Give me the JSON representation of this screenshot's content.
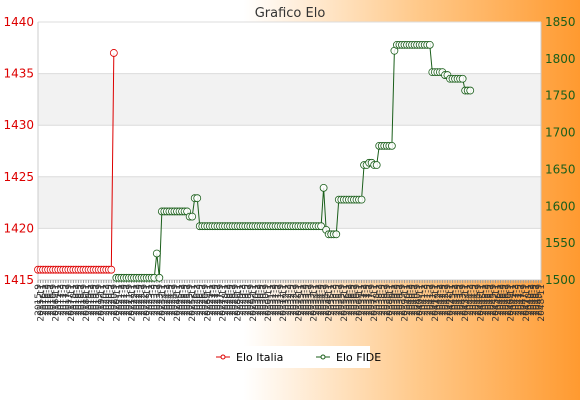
{
  "chart_data": {
    "type": "line",
    "title": "Grafico Elo",
    "xlabel": "",
    "ylabel_left": "",
    "ylabel_right": "",
    "x_tick_labels": [
      "2015-9",
      "2015-11",
      "2016-1",
      "2016-3",
      "2016-5",
      "2016-7",
      "2016-9",
      "2016-11",
      "2017-1",
      "2017-3",
      "2017-5",
      "2017-7",
      "2017-9",
      "2017-11",
      "2018-1",
      "2018-3",
      "2018-5",
      "2018-7",
      "2018-9",
      "2018-11",
      "2019-1",
      "2019-3",
      "2019-5",
      "2019-7",
      "2019-9",
      "2019-11",
      "2020-1",
      "2020-3",
      "2020-5",
      "2020-7",
      "2020-9",
      "2020-11",
      "2021-1",
      "2021-3",
      "2021-5",
      "2021-7",
      "2021-9",
      "2021-11",
      "2022-1",
      "2022-3",
      "2022-5",
      "2022-7",
      "2022-9",
      "2022-11",
      "2023-1",
      "2023-3",
      "2023-5",
      "2023-7",
      "2023-9",
      "2023-11",
      "2024-1",
      "2024-3",
      "2024-5",
      "2024-7",
      "2024-9",
      "2024-11",
      "2025-1",
      "2025-3",
      "2025-5",
      "2025-7",
      "2025-9",
      "2025-11",
      "2026-1",
      "2026-3",
      "2026-5",
      "2026-7",
      "2026-9",
      "2026-11",
      "2027-1",
      "2027-3",
      "2027-5",
      "2027-7",
      "2027-9",
      "2027-11",
      "2028-1",
      "2028-3",
      "2028-5",
      "2028-7",
      "2028-9",
      "2028-11",
      "2029-1",
      "2029-3",
      "2029-5",
      "2029-7",
      "2029-9",
      "2029-11",
      "2030-1",
      "2030-3",
      "2030-5",
      "2030-7",
      "2030-9",
      "2030-11",
      "2031-1",
      "2031-3",
      "2031-5",
      "2031-7",
      "2031-9",
      "2031-11",
      "2032-1",
      "2032-3",
      "2032-5",
      "2032-7",
      "2032-9",
      "2032-11",
      "2033-1",
      "2033-3",
      "2033-5",
      "2033-7",
      "2033-9",
      "2033-11",
      "2034-1",
      "2034-3",
      "2034-5",
      "2034-7",
      "2034-9",
      "2034-11",
      "2035-1",
      "2035-3",
      "2035-5",
      "2035-7",
      "2035-9",
      "2035-11",
      "2036-1",
      "2036-3",
      "2036-5",
      "2036-7",
      "2036-9",
      "2036-11",
      "2037-1",
      "2037-3",
      "2037-5",
      "2037-7",
      "2037-9",
      "2037-11",
      "2038-1",
      "2038-3",
      "2038-5",
      "2038-7",
      "2038-9",
      "2038-11",
      "2039-1",
      "2039-3",
      "2039-5",
      "2039-7",
      "2039-9",
      "2039-11",
      "2040-1",
      "2040-3",
      "2040-5",
      "2040-7",
      "2040-9",
      "2040-11",
      "2041-1",
      "2041-3",
      "2041-5",
      "2041-7",
      "2041-9",
      "2041-11",
      "2042-1",
      "2042-3",
      "2042-5",
      "2042-7",
      "2042-9",
      "2042-11",
      "2043-1",
      "2043-3",
      "2043-5",
      "2043-7",
      "2043-9",
      "2043-11",
      "2044-1",
      "2044-3",
      "2044-5",
      "2044-7",
      "2044-9",
      "2044-11",
      "2045-1",
      "2045-3",
      "2045-5",
      "2045-7",
      "2045-9",
      "2045-11",
      "2046-1",
      "2046-3",
      "2046-5",
      "2046-7",
      "2046-9",
      "2046-11",
      "2047-1",
      "2047-3",
      "2047-5",
      "2047-7",
      "2047-9",
      "2047-11",
      "2048-1",
      "2048-3",
      "2048-5",
      "2048-7",
      "2048-9",
      "2048-11"
    ],
    "y_left": {
      "min": 1415,
      "max": 1440,
      "ticks": [
        1415,
        1420,
        1425,
        1430,
        1435,
        1440
      ],
      "color": "#dd0000"
    },
    "y_right": {
      "min": 1500,
      "max": 1850,
      "ticks": [
        1500,
        1550,
        1600,
        1650,
        1700,
        1750,
        1800,
        1850
      ],
      "color": "#1a5e1a"
    },
    "grid": true,
    "legend_position": "bottom",
    "series": [
      {
        "name": "Elo Italia",
        "axis": "left",
        "color": "#dd0000",
        "values": [
          1416,
          1416,
          1416,
          1416,
          1416,
          1416,
          1416,
          1416,
          1416,
          1416,
          1416,
          1416,
          1416,
          1416,
          1416,
          1416,
          1416,
          1416,
          1416,
          1416,
          1416,
          1416,
          1416,
          1416,
          1416,
          1416,
          1416,
          1416,
          1416,
          1416,
          1437
        ]
      },
      {
        "name": "Elo FIDE",
        "axis": "right",
        "start_index": 31,
        "color": "#1a5e1a",
        "values": [
          1503,
          1503,
          1503,
          1503,
          1503,
          1503,
          1503,
          1503,
          1503,
          1503,
          1503,
          1503,
          1503,
          1503,
          1503,
          1503,
          1536,
          1503,
          1593,
          1593,
          1593,
          1593,
          1593,
          1593,
          1593,
          1593,
          1593,
          1593,
          1593,
          1586,
          1586,
          1611,
          1611,
          1573,
          1573,
          1573,
          1573,
          1573,
          1573,
          1573,
          1573,
          1573,
          1573,
          1573,
          1573,
          1573,
          1573,
          1573,
          1573,
          1573,
          1573,
          1573,
          1573,
          1573,
          1573,
          1573,
          1573,
          1573,
          1573,
          1573,
          1573,
          1573,
          1573,
          1573,
          1573,
          1573,
          1573,
          1573,
          1573,
          1573,
          1573,
          1573,
          1573,
          1573,
          1573,
          1573,
          1573,
          1573,
          1573,
          1573,
          1573,
          1573,
          1625,
          1568,
          1562,
          1562,
          1562,
          1562,
          1609,
          1609,
          1609,
          1609,
          1609,
          1609,
          1609,
          1609,
          1609,
          1609,
          1656,
          1656,
          1659,
          1659,
          1656,
          1656,
          1682,
          1682,
          1682,
          1682,
          1682,
          1682,
          1811,
          1819,
          1819,
          1819,
          1819,
          1819,
          1819,
          1819,
          1819,
          1819,
          1819,
          1819,
          1819,
          1819,
          1819,
          1782,
          1782,
          1782,
          1782,
          1782,
          1778,
          1778,
          1773,
          1773,
          1773,
          1773,
          1773,
          1773,
          1757,
          1757,
          1757
        ]
      }
    ]
  }
}
